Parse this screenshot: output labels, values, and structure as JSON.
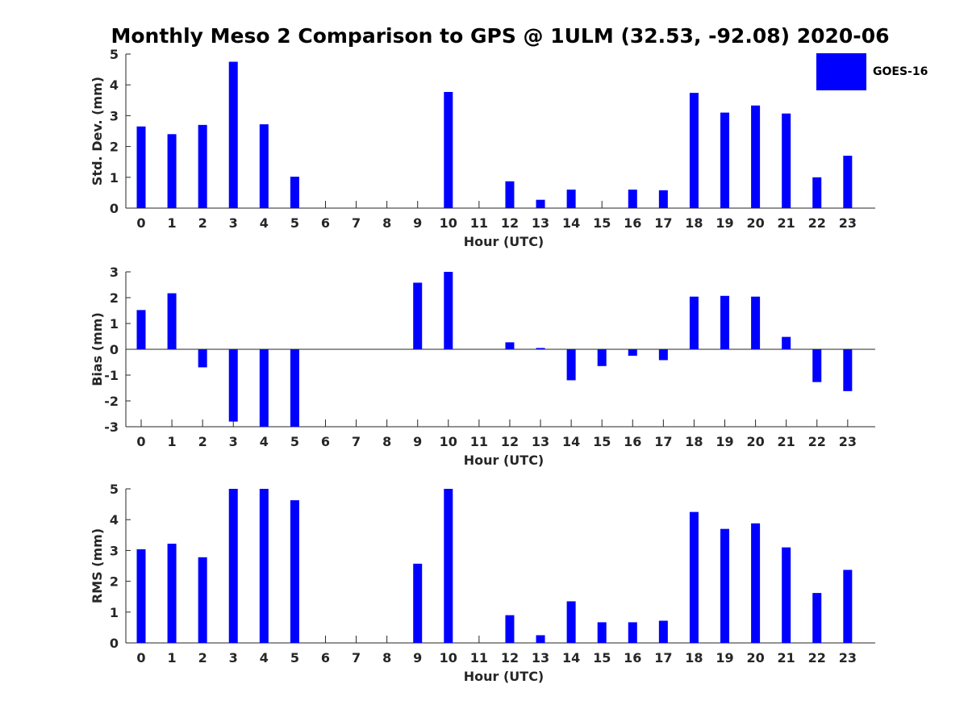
{
  "title": "Monthly Meso 2 Comparison to GPS @ 1ULM (32.53, -92.08) 2020-06",
  "legend": {
    "label": "GOES-16",
    "color": "#0000ff"
  },
  "chart_data": [
    {
      "type": "bar",
      "id": "std",
      "title": "",
      "xlabel": "Hour (UTC)",
      "ylabel": "Std. Dev. (mm)",
      "ylim": [
        0,
        5
      ],
      "yticks": [
        0,
        1,
        2,
        3,
        4,
        5
      ],
      "categories": [
        "0",
        "1",
        "2",
        "3",
        "4",
        "5",
        "6",
        "7",
        "8",
        "9",
        "10",
        "11",
        "12",
        "13",
        "14",
        "15",
        "16",
        "17",
        "18",
        "19",
        "20",
        "21",
        "22",
        "23"
      ],
      "series": [
        {
          "name": "GOES-16",
          "color": "#0000ff",
          "values": [
            2.65,
            2.4,
            2.7,
            4.75,
            2.72,
            1.02,
            0,
            0,
            0,
            0,
            3.77,
            0,
            0.87,
            0.27,
            0.6,
            0,
            0.6,
            0.58,
            3.74,
            3.1,
            3.33,
            3.07,
            1.0,
            1.7
          ]
        }
      ]
    },
    {
      "type": "bar",
      "id": "bias",
      "title": "",
      "xlabel": "Hour (UTC)",
      "ylabel": "Bias (mm)",
      "ylim": [
        -3,
        3
      ],
      "yticks": [
        -3,
        -2,
        -1,
        0,
        1,
        2,
        3
      ],
      "categories": [
        "0",
        "1",
        "2",
        "3",
        "4",
        "5",
        "6",
        "7",
        "8",
        "9",
        "10",
        "11",
        "12",
        "13",
        "14",
        "15",
        "16",
        "17",
        "18",
        "19",
        "20",
        "21",
        "22",
        "23"
      ],
      "series": [
        {
          "name": "GOES-16",
          "color": "#0000ff",
          "values": [
            1.52,
            2.17,
            -0.7,
            -2.8,
            -3.0,
            -3.0,
            0,
            0,
            0,
            2.58,
            3.0,
            0,
            0.27,
            0.05,
            -1.2,
            -0.65,
            -0.25,
            -0.42,
            2.04,
            2.07,
            2.04,
            0.48,
            -1.27,
            -1.62
          ]
        }
      ]
    },
    {
      "type": "bar",
      "id": "rms",
      "title": "",
      "xlabel": "Hour (UTC)",
      "ylabel": "RMS (mm)",
      "ylim": [
        0,
        5
      ],
      "yticks": [
        0,
        1,
        2,
        3,
        4,
        5
      ],
      "categories": [
        "0",
        "1",
        "2",
        "3",
        "4",
        "5",
        "6",
        "7",
        "8",
        "9",
        "10",
        "11",
        "12",
        "13",
        "14",
        "15",
        "16",
        "17",
        "18",
        "19",
        "20",
        "21",
        "22",
        "23"
      ],
      "series": [
        {
          "name": "GOES-16",
          "color": "#0000ff",
          "values": [
            3.04,
            3.22,
            2.78,
            5.0,
            5.0,
            4.63,
            0,
            0,
            0,
            2.57,
            5.0,
            0,
            0.9,
            0.25,
            1.35,
            0.67,
            0.67,
            0.72,
            4.25,
            3.7,
            3.88,
            3.1,
            1.62,
            2.37
          ]
        }
      ]
    }
  ]
}
